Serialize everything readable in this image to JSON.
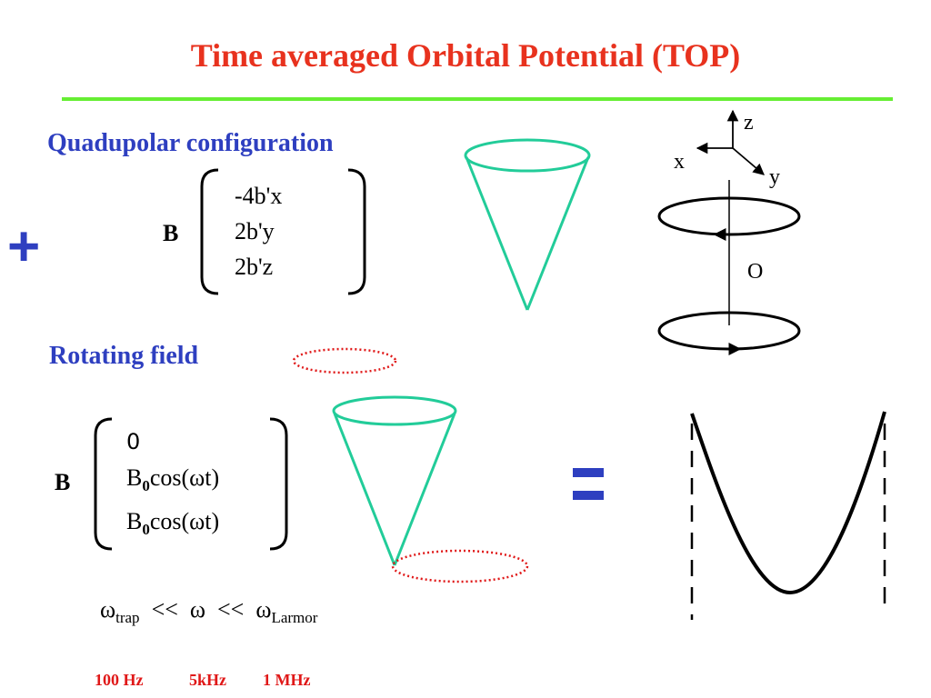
{
  "title": "Time averaged Orbital Potential (TOP)",
  "quadrupole": {
    "heading": "Quadupolar configuration",
    "field_symbol": "B",
    "components": [
      "-4b'x",
      "2b'y",
      "2b'z"
    ]
  },
  "plus_sign": "+",
  "axes": {
    "z": "z",
    "x": "x",
    "y": "y",
    "origin": "O"
  },
  "rotating": {
    "heading": "Rotating field",
    "field_symbol": "B",
    "component_0": "0",
    "component_1": {
      "base": "B",
      "sub": "0",
      "rest": "cos(ωt)"
    },
    "component_2": {
      "base": "B",
      "sub": "0",
      "rest": "cos(ωt)"
    }
  },
  "relation": {
    "w1": "ω",
    "s1": "trap",
    "lt1": "<<",
    "w2": "ω",
    "lt2": "<<",
    "w3": "ω",
    "s3": "Larmor"
  },
  "frequencies": {
    "f1": "100 Hz",
    "f2": "5kHz",
    "f3": "1 MHz"
  },
  "colors": {
    "title": "#e8321e",
    "rule": "#66ee33",
    "heading": "#2e3fc0",
    "cone": "#22cc99",
    "dotted_orbit": "#e01818",
    "frequency_text": "#e01818"
  }
}
